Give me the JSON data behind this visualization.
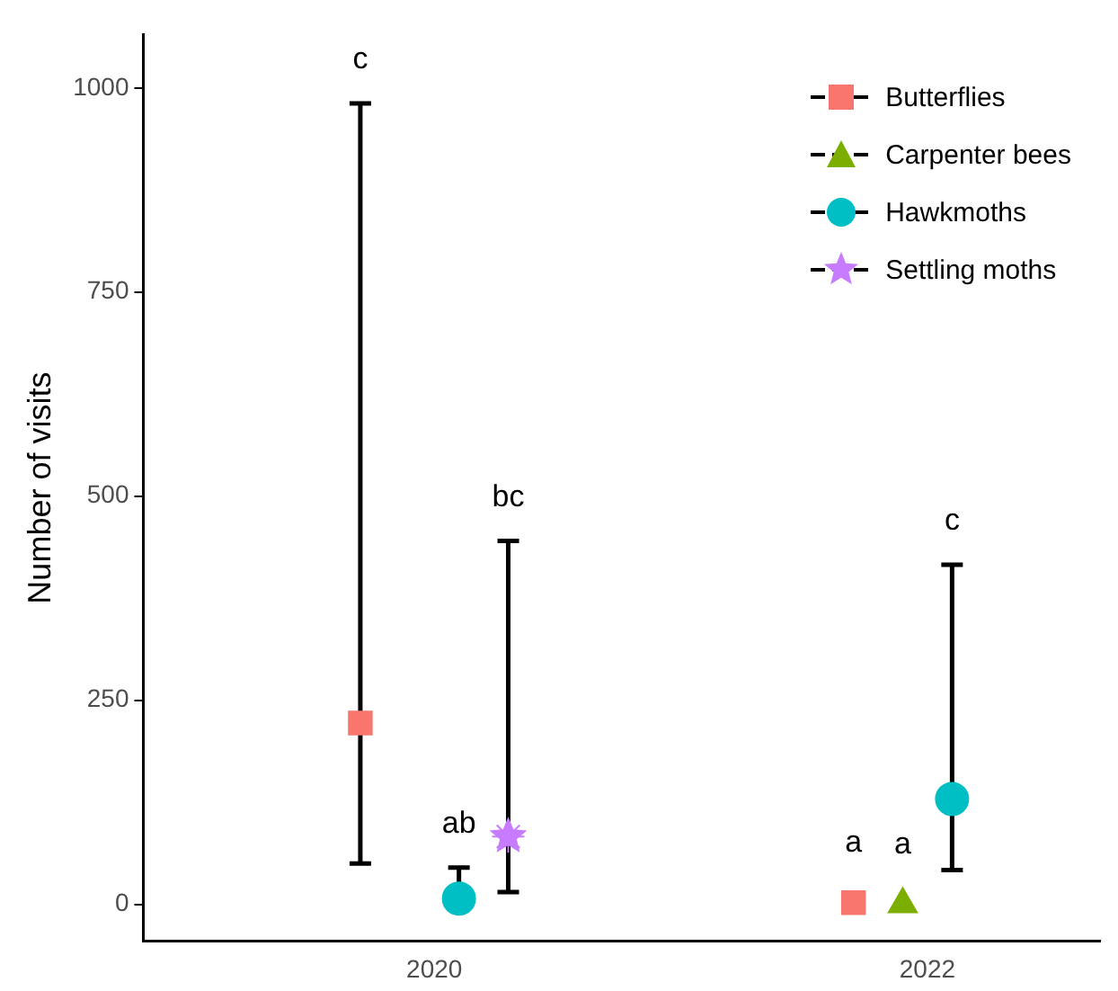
{
  "chart_data": {
    "type": "scatter",
    "ylabel": "Number of visits",
    "xlim": [
      2018.82,
      2022.7
    ],
    "xticks": [
      2020,
      2022
    ],
    "ylim": [
      -45,
      1065
    ],
    "yticks": [
      0,
      250,
      500,
      750,
      1000
    ],
    "grid": false,
    "legend": "top right",
    "series": [
      {
        "name": "Butterflies",
        "color": "#f8766d",
        "marker": "square",
        "x": [
          2019.7,
          2021.7
        ],
        "values": [
          222,
          2
        ],
        "errors": [
          [
            50,
            981
          ],
          null
        ]
      },
      {
        "name": "Carpenter bees",
        "color": "#7cae00",
        "marker": "triangle",
        "x": [
          2021.9
        ],
        "values": [
          0
        ]
      },
      {
        "name": "Hawkmoths",
        "color": "#00bfc4",
        "marker": "circle",
        "x": [
          2020.1,
          2022.1
        ],
        "values": [
          7,
          129
        ],
        "errors": [
          [
            7,
            45
          ],
          [
            42,
            416
          ]
        ]
      },
      {
        "name": "Settling moths",
        "color": "#c77cff",
        "marker": "star",
        "x": [
          2020.3
        ],
        "values": [
          83
        ],
        "errors": [
          [
            15,
            445
          ]
        ]
      }
    ],
    "annotations": [
      "c",
      "ab",
      "bc",
      "a",
      "a",
      "c"
    ]
  }
}
